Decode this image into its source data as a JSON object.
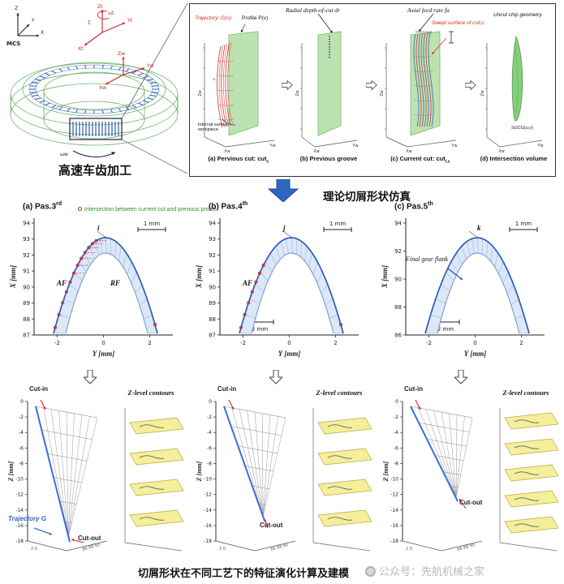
{
  "gear": {
    "mcs_label": "MCS",
    "caption": "高速车齿加工",
    "labels": {
      "z": "Z",
      "y": "Y",
      "x": "X",
      "sigma": "Σ",
      "omega_t": "ωt",
      "zt": "Zt",
      "yt": "Yt",
      "xt": "Xt",
      "zw": "Zw",
      "yw": "Yw",
      "xw": "Xw",
      "omega_w": "ωw"
    }
  },
  "simbox": {
    "header": {
      "radial": "Radial depth-of-cut dr",
      "axial": "Axial feed rate fa"
    },
    "panels": [
      {
        "caption": "(a) Pervious cut: cut",
        "caption_sub": "c",
        "trajectory": "Trajectory: G(u)",
        "profile": "Profile P(v)",
        "surface_note": "Internal surface of workpiece",
        "param_u": "u",
        "z_axis": "Zw",
        "x_axis": "Xw",
        "y_axis": "Yw"
      },
      {
        "caption": "(b) Previous groove",
        "z_axis": "Zw",
        "x_axis": "Xw",
        "y_axis": "Yw"
      },
      {
        "caption": "(c) Current cut: cut",
        "caption_sub": "i,c",
        "swept": "Swept surface of cuti,c",
        "z_axis": "Zw",
        "x_axis": "Xw",
        "y_axis": "Yw"
      },
      {
        "caption": "(d) Intersection volume",
        "chip": "Uncut chip geometry",
        "surface_label": "SUCG(u,v)",
        "z_axis": "Zw",
        "x_axis": "Xw",
        "y_axis": "Yw"
      }
    ],
    "caption": "理论切屑形状仿真"
  },
  "middle": {
    "legend_text": "Intersection between current cut and previous profile",
    "xlabel": "Y [mm]",
    "ylabel": "X [mm]",
    "scale_top": "1 mm",
    "scale_bottom": "2 mm",
    "plots": [
      {
        "title": "(a) Pas.3",
        "title_sup": "rd",
        "yticks": [
          94,
          93,
          92,
          91,
          90,
          89,
          88,
          87
        ],
        "xticks": [
          -2,
          0,
          2
        ],
        "af": "AF",
        "rf": "RF",
        "pointer": "i"
      },
      {
        "title": "(b) Pas.4",
        "title_sup": "th",
        "yticks": [
          94,
          93,
          92,
          91,
          90,
          89,
          88,
          87
        ],
        "xticks": [
          -2,
          0,
          2
        ],
        "af": "AF",
        "pointer": "j"
      },
      {
        "title": "(c) Pas.5",
        "title_sup": "th",
        "yticks": [
          94,
          92,
          90,
          88,
          86
        ],
        "xticks": [
          -2,
          0,
          2
        ],
        "pointer": "k",
        "flank_label": "Final gear flank"
      }
    ]
  },
  "bottom": {
    "contours_title": "Z-level contours",
    "zlabel": "Z [mm]",
    "plots": [
      {
        "cut_in": "Cut-in",
        "cut_out": "Cut-out",
        "trajectory": "Trajectory G",
        "zticks": [
          0,
          -2,
          -4,
          -6,
          -8,
          -10,
          -12,
          -14,
          -16,
          -18
        ],
        "xticks_left": "2 0",
        "xticks_right": "86 88 90"
      },
      {
        "cut_in": "Cut-in",
        "cut_out": "Cut-out",
        "zticks": [
          0,
          -2,
          -4,
          -6,
          -8,
          -10,
          -12,
          -14,
          -16,
          -18
        ],
        "xticks_left": "2 0",
        "xticks_right": "86 88 90"
      },
      {
        "cut_in": "Cut-in",
        "cut_out": "Cut-out",
        "zticks": [
          0,
          -2,
          -4,
          -6,
          -8,
          -10,
          -12,
          -14,
          -16,
          -18
        ],
        "xticks_left": "2 0",
        "xticks_right": "86 88 90"
      }
    ]
  },
  "footer": {
    "caption": "切屑形状在不同工艺下的特征演化计算及建模",
    "watermark": "公众号：先航机械之家"
  },
  "colors": {
    "accent_blue": "#2f66c0",
    "band_blue": "#2d5cb8",
    "surface_green": "#b9e0ad",
    "wire_green": "#52a852",
    "plane_yellow": "#f5ee9a",
    "red": "#cc3b33",
    "legend_green": "#2e8b2e"
  }
}
